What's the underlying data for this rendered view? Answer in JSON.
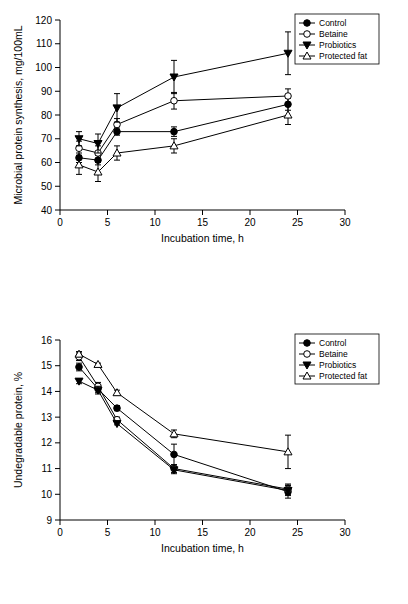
{
  "chart_data": [
    {
      "type": "line",
      "x_label": "Incubation time, h",
      "y_label": "Microbial protein synthesis, mg/100mL",
      "x": [
        2,
        4,
        6,
        12,
        24
      ],
      "xlim": [
        0,
        30
      ],
      "xticks": [
        0,
        5,
        10,
        15,
        20,
        25,
        30
      ],
      "ylim": [
        40,
        120
      ],
      "yticks": [
        40,
        50,
        60,
        70,
        80,
        90,
        100,
        110,
        120
      ],
      "legend": "top-right",
      "series": [
        {
          "name": "Control",
          "color": "#000000",
          "marker": "circle",
          "values": [
            62,
            61,
            73,
            73,
            84.5
          ],
          "errors": [
            2,
            2,
            1.5,
            2,
            2.5
          ]
        },
        {
          "name": "Betaine",
          "color": "#000000",
          "marker": "open-circle",
          "values": [
            66,
            64,
            76,
            86,
            88
          ],
          "errors": [
            3,
            3,
            2.5,
            3.5,
            3
          ]
        },
        {
          "name": "Probiotics",
          "color": "#000000",
          "marker": "triangle-down",
          "values": [
            70,
            68,
            83,
            96,
            106
          ],
          "errors": [
            3,
            4,
            6,
            7,
            9
          ]
        },
        {
          "name": "Protected fat",
          "color": "#000000",
          "marker": "open-triangle-up",
          "values": [
            59,
            56,
            64,
            67,
            80
          ],
          "errors": [
            4,
            4,
            3,
            3,
            4
          ]
        }
      ]
    },
    {
      "type": "line",
      "x_label": "Incubation time, h",
      "y_label": "Undegradable protein, %",
      "x": [
        2,
        4,
        6,
        12,
        24
      ],
      "xlim": [
        0,
        30
      ],
      "xticks": [
        0,
        5,
        10,
        15,
        20,
        25,
        30
      ],
      "ylim": [
        9,
        16
      ],
      "yticks": [
        9,
        10,
        11,
        12,
        13,
        14,
        15,
        16
      ],
      "legend": "top-right",
      "series": [
        {
          "name": "Control",
          "color": "#000000",
          "marker": "circle",
          "values": [
            14.95,
            14.1,
            13.35,
            11.55,
            10.1
          ],
          "errors": [
            0.15,
            0.15,
            0.1,
            0.4,
            0.25
          ]
        },
        {
          "name": "Betaine",
          "color": "#000000",
          "marker": "open-circle",
          "values": [
            15.35,
            14.2,
            12.9,
            11.0,
            10.2
          ],
          "errors": [
            0.15,
            0.15,
            0.1,
            0.15,
            0.2
          ]
        },
        {
          "name": "Probiotics",
          "color": "#000000",
          "marker": "triangle-down",
          "values": [
            14.4,
            14.05,
            12.75,
            10.95,
            10.15
          ],
          "errors": [
            0.1,
            0.15,
            0.05,
            0.15,
            0.2
          ]
        },
        {
          "name": "Protected fat",
          "color": "#000000",
          "marker": "open-triangle-up",
          "values": [
            15.45,
            15.05,
            13.95,
            12.35,
            11.65
          ],
          "errors": [
            0.1,
            0.05,
            0.1,
            0.15,
            0.65
          ]
        }
      ]
    }
  ]
}
